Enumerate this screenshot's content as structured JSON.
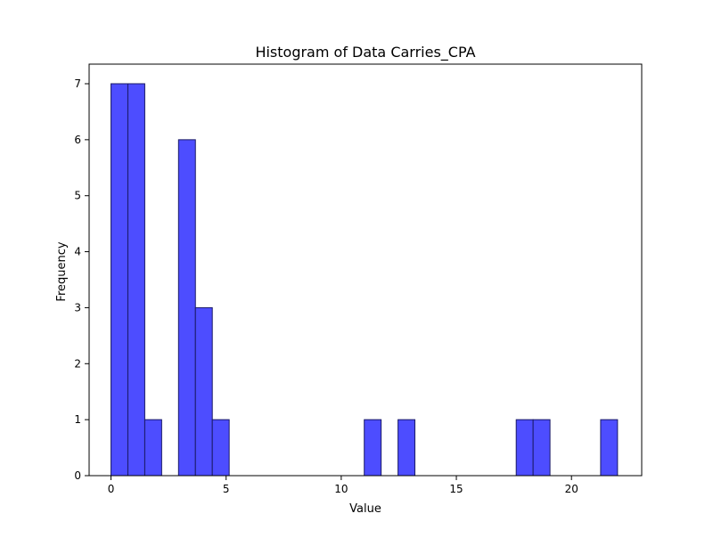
{
  "chart_data": {
    "type": "bar",
    "title": "Histogram of Data Carries_CPA",
    "xlabel": "Value",
    "ylabel": "Frequency",
    "xlim": [
      -0.95,
      23.05
    ],
    "ylim": [
      0,
      7.35
    ],
    "x_ticks": [
      0,
      5,
      10,
      15,
      20
    ],
    "y_ticks": [
      0,
      1,
      2,
      3,
      4,
      5,
      6,
      7
    ],
    "bin_edges": [
      0,
      0.7333,
      1.4667,
      2.2,
      2.9333,
      3.6667,
      4.4,
      5.1333,
      5.8667,
      6.6,
      7.3333,
      8.0667,
      8.8,
      9.5333,
      10.2667,
      11.0,
      11.7333,
      12.4667,
      13.2,
      13.9333,
      14.6667,
      15.4,
      16.1333,
      16.8667,
      17.6,
      18.3333,
      19.0667,
      19.8,
      20.5333,
      21.2667,
      22.0
    ],
    "counts": [
      7,
      7,
      1,
      0,
      6,
      3,
      1,
      0,
      0,
      0,
      0,
      0,
      0,
      0,
      0,
      1,
      0,
      1,
      0,
      0,
      0,
      0,
      0,
      0,
      1,
      1,
      0,
      0,
      0,
      1
    ],
    "bar_color": "#4d4dff",
    "edge_color": "#1a1a66",
    "grid": false,
    "legend": false
  }
}
